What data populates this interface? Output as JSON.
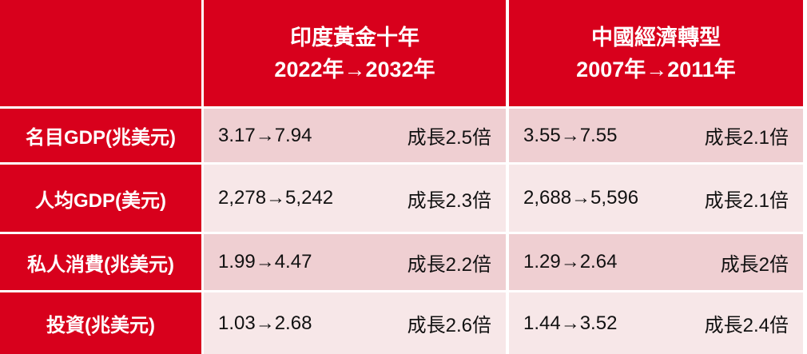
{
  "table": {
    "header": {
      "columns": [
        {
          "title": "印度黃金十年",
          "period": "2022年→2032年"
        },
        {
          "title": "中國經濟轉型",
          "period": "2007年→2011年"
        }
      ]
    },
    "rows": [
      {
        "label": "名目GDP(兆美元)",
        "cells": [
          {
            "change": "3.17→7.94",
            "growth": "成長2.5倍"
          },
          {
            "change": "3.55→7.55",
            "growth": "成長2.1倍"
          }
        ]
      },
      {
        "label": "人均GDP(美元)",
        "cells": [
          {
            "change": "2,278→5,242",
            "growth": "成長2.3倍"
          },
          {
            "change": "2,688→5,596",
            "growth": "成長2.1倍"
          }
        ]
      },
      {
        "label": "私人消費(兆美元)",
        "cells": [
          {
            "change": "1.99→4.47",
            "growth": "成長2.2倍"
          },
          {
            "change": "1.29→2.64",
            "growth": "成長2倍"
          }
        ]
      },
      {
        "label": "投資(兆美元)",
        "cells": [
          {
            "change": "1.03→2.68",
            "growth": "成長2.6倍"
          },
          {
            "change": "1.44→3.52",
            "growth": "成長2.4倍"
          }
        ]
      }
    ]
  }
}
